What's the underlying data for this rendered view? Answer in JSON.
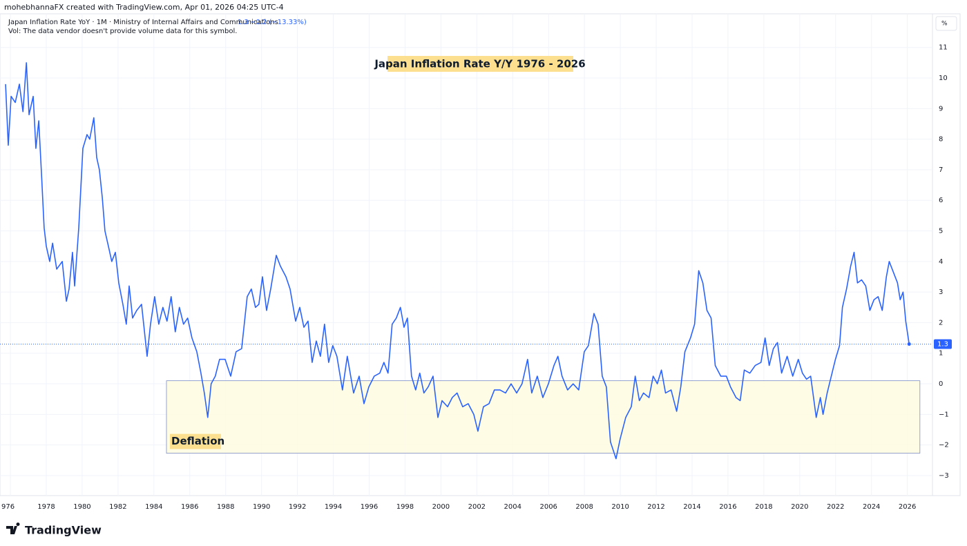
{
  "header": {
    "credit": "mohebhannaFX created with TradingView.com, Apr 01, 2026 04:25 UTC-4",
    "symbol": "Japan Inflation Rate YoY · 1M · Ministry of Internal Affairs and Communications",
    "change": "−0.2 (−13.33%)",
    "volume_note": "Vol: The data vendor doesn't provide volume data for this symbol.",
    "brand": "TradingView"
  },
  "chart_data": {
    "type": "line",
    "title": "Japan Inflation Rate Y/Y 1976 - 2026",
    "y_unit": "%",
    "deflation_zone": {
      "label": "Deflation",
      "xrange": [
        1984.7,
        2026.7
      ],
      "yrange": [
        0.1,
        -2.27
      ]
    },
    "xlim": [
      1975.42,
      2027.4
    ],
    "ylim": [
      -3.656,
      12.1
    ],
    "xticks": [
      {
        "value": 1976,
        "label": "976"
      },
      1978,
      1980,
      1982,
      1984,
      1986,
      1988,
      1990,
      1992,
      1994,
      1996,
      1998,
      2000,
      2002,
      2004,
      2006,
      2008,
      2010,
      2012,
      2014,
      2016,
      2018,
      2020,
      2022,
      2024,
      2026
    ],
    "yticks": [
      {
        "value": -3,
        "label": "−3"
      },
      {
        "value": -2,
        "label": "−2"
      },
      {
        "value": -1,
        "label": "−1"
      },
      0,
      1,
      2,
      3,
      4,
      5,
      6,
      7,
      8,
      9,
      10,
      11
    ],
    "grid": true,
    "x": [
      1975.73,
      1975.88,
      1976.04,
      1976.27,
      1976.5,
      1976.7,
      1976.89,
      1977.04,
      1977.27,
      1977.42,
      1977.58,
      1977.73,
      1977.88,
      1978.0,
      1978.19,
      1978.35,
      1978.58,
      1978.89,
      1979.12,
      1979.27,
      1979.46,
      1979.58,
      1979.81,
      1980.04,
      1980.27,
      1980.42,
      1980.65,
      1980.81,
      1980.96,
      1981.12,
      1981.27,
      1981.5,
      1981.65,
      1981.85,
      1982.04,
      1982.27,
      1982.46,
      1982.62,
      1982.81,
      1983.04,
      1983.31,
      1983.62,
      1983.81,
      1984.04,
      1984.27,
      1984.5,
      1984.73,
      1984.96,
      1985.19,
      1985.42,
      1985.65,
      1985.88,
      1986.12,
      1986.39,
      1986.62,
      1986.81,
      1987.0,
      1987.19,
      1987.42,
      1987.66,
      1987.97,
      1988.28,
      1988.58,
      1988.89,
      1989.2,
      1989.43,
      1989.66,
      1989.85,
      1990.05,
      1990.28,
      1990.51,
      1990.82,
      1991.05,
      1991.36,
      1991.59,
      1991.9,
      1992.13,
      1992.36,
      1992.59,
      1992.82,
      1993.05,
      1993.28,
      1993.51,
      1993.74,
      1993.97,
      1994.2,
      1994.51,
      1994.78,
      1995.13,
      1995.44,
      1995.71,
      1995.98,
      1996.28,
      1996.59,
      1996.82,
      1997.05,
      1997.28,
      1997.51,
      1997.74,
      1997.94,
      1998.13,
      1998.36,
      1998.59,
      1998.82,
      1999.05,
      1999.29,
      1999.56,
      1999.83,
      2000.06,
      2000.37,
      2000.63,
      2000.9,
      2001.21,
      2001.52,
      2001.83,
      2002.06,
      2002.37,
      2002.68,
      2002.98,
      2003.29,
      2003.6,
      2003.91,
      2004.22,
      2004.52,
      2004.83,
      2005.06,
      2005.37,
      2005.68,
      2005.99,
      2006.3,
      2006.52,
      2006.75,
      2007.06,
      2007.37,
      2007.68,
      2007.99,
      2008.22,
      2008.53,
      2008.76,
      2008.99,
      2009.22,
      2009.45,
      2009.76,
      2009.99,
      2010.3,
      2010.61,
      2010.83,
      2011.06,
      2011.29,
      2011.6,
      2011.83,
      2012.06,
      2012.29,
      2012.52,
      2012.83,
      2013.14,
      2013.37,
      2013.6,
      2013.91,
      2014.14,
      2014.37,
      2014.6,
      2014.83,
      2015.06,
      2015.29,
      2015.6,
      2015.91,
      2016.14,
      2016.45,
      2016.68,
      2016.91,
      2017.22,
      2017.52,
      2017.84,
      2018.07,
      2018.3,
      2018.53,
      2018.76,
      2018.99,
      2019.3,
      2019.61,
      2019.92,
      2020.15,
      2020.38,
      2020.61,
      2020.92,
      2021.15,
      2021.3,
      2021.53,
      2021.76,
      2021.99,
      2022.22,
      2022.38,
      2022.61,
      2022.84,
      2023.03,
      2023.22,
      2023.45,
      2023.68,
      2023.91,
      2024.14,
      2024.37,
      2024.6,
      2024.83,
      2024.99,
      2025.22,
      2025.45,
      2025.6,
      2025.76,
      2025.91,
      2026.1
    ],
    "series": [
      {
        "name": "Japan Inflation Rate YoY",
        "color": "#2962ff",
        "values": [
          9.8,
          7.8,
          9.4,
          9.2,
          9.8,
          8.9,
          10.5,
          8.8,
          9.4,
          7.7,
          8.6,
          6.9,
          5.1,
          4.5,
          4.0,
          4.6,
          3.75,
          4.0,
          2.7,
          3.1,
          4.3,
          3.2,
          5.1,
          7.7,
          8.15,
          8.0,
          8.7,
          7.4,
          7.0,
          6.1,
          5.0,
          4.4,
          4.0,
          4.3,
          3.3,
          2.6,
          1.95,
          3.2,
          2.15,
          2.4,
          2.6,
          0.9,
          1.95,
          2.85,
          1.95,
          2.5,
          2.05,
          2.85,
          1.7,
          2.5,
          1.95,
          2.15,
          1.5,
          1.05,
          0.35,
          -0.3,
          -1.1,
          0.0,
          0.25,
          0.8,
          0.8,
          0.25,
          1.05,
          1.15,
          2.85,
          3.1,
          2.5,
          2.6,
          3.5,
          2.4,
          3.1,
          4.2,
          3.85,
          3.5,
          3.1,
          2.05,
          2.5,
          1.85,
          2.05,
          0.7,
          1.4,
          0.9,
          1.95,
          0.7,
          1.25,
          0.9,
          -0.2,
          0.9,
          -0.3,
          0.25,
          -0.65,
          -0.1,
          0.25,
          0.35,
          0.7,
          0.35,
          1.95,
          2.15,
          2.5,
          1.85,
          2.15,
          0.25,
          -0.2,
          0.35,
          -0.3,
          -0.1,
          0.25,
          -1.1,
          -0.55,
          -0.75,
          -0.45,
          -0.3,
          -0.75,
          -0.65,
          -1.0,
          -1.55,
          -0.75,
          -0.65,
          -0.2,
          -0.2,
          -0.3,
          0.0,
          -0.3,
          0.0,
          0.8,
          -0.3,
          0.25,
          -0.45,
          0.0,
          0.6,
          0.9,
          0.25,
          -0.2,
          0.0,
          -0.2,
          1.05,
          1.25,
          2.3,
          1.95,
          0.25,
          -0.1,
          -1.9,
          -2.45,
          -1.8,
          -1.1,
          -0.75,
          0.25,
          -0.55,
          -0.3,
          -0.45,
          0.25,
          0.0,
          0.45,
          -0.3,
          -0.2,
          -0.9,
          -0.1,
          1.05,
          1.5,
          1.95,
          3.7,
          3.3,
          2.4,
          2.15,
          0.6,
          0.25,
          0.25,
          -0.1,
          -0.45,
          -0.55,
          0.45,
          0.35,
          0.6,
          0.7,
          1.5,
          0.6,
          1.15,
          1.35,
          0.35,
          0.9,
          0.25,
          0.8,
          0.35,
          0.15,
          0.25,
          -1.1,
          -0.45,
          -1.0,
          -0.3,
          0.25,
          0.8,
          1.25,
          2.5,
          3.1,
          3.85,
          4.3,
          3.3,
          3.4,
          3.2,
          2.4,
          2.75,
          2.85,
          2.4,
          3.5,
          4.0,
          3.65,
          3.3,
          2.75,
          3.0,
          2.05,
          1.3
        ]
      }
    ]
  }
}
